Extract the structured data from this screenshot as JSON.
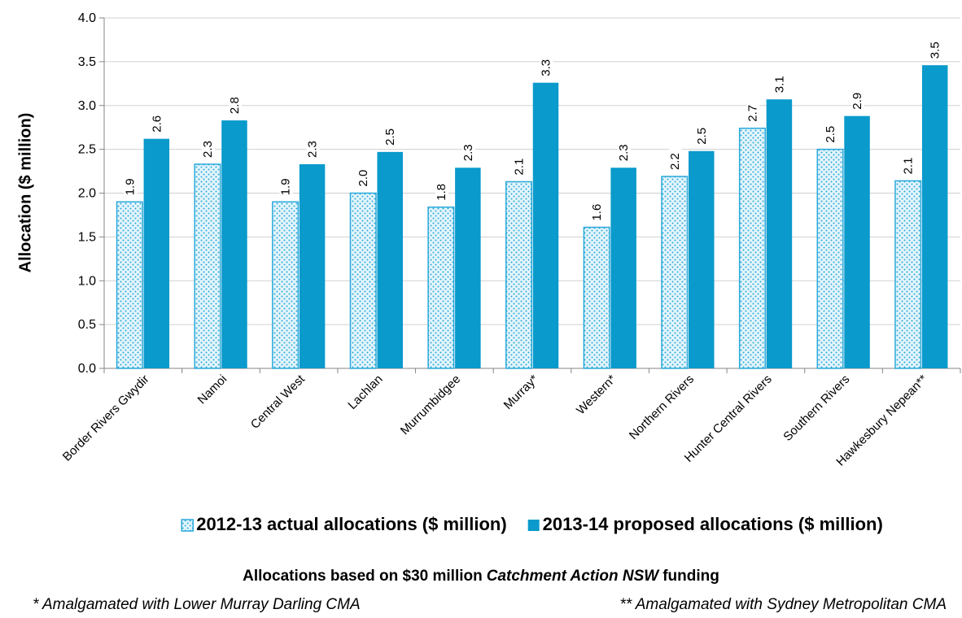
{
  "chart_data": {
    "type": "bar",
    "y_label": "Allocation ($ million)",
    "categories": [
      "Border Rivers Gwydir",
      "Namoi",
      "Central West",
      "Lachlan",
      "Murrumbidgee",
      "Murray*",
      "Western*",
      "Northern Rivers",
      "Hunter Central Rivers",
      "Southern Rivers",
      "Hawkesbury Nepean**"
    ],
    "series": [
      {
        "name": "2012-13 actual allocations ($ million)",
        "color": "#29a9da",
        "pattern": "dotted",
        "values": [
          1.9,
          2.33,
          1.9,
          2.0,
          1.84,
          2.13,
          1.61,
          2.19,
          2.74,
          2.5,
          2.14
        ],
        "value_labels": [
          "1.9",
          "2.3",
          "1.9",
          "2.0",
          "1.8",
          "2.1",
          "1.6",
          "2.2",
          "2.7",
          "2.5",
          "2.1"
        ]
      },
      {
        "name": "2013-14 proposed allocations ($ million)",
        "color": "#0a9acb",
        "values": [
          2.62,
          2.83,
          2.33,
          2.47,
          2.29,
          3.26,
          2.29,
          2.48,
          3.07,
          2.88,
          3.46
        ],
        "value_labels": [
          "2.6",
          "2.8",
          "2.3",
          "2.5",
          "2.3",
          "3.3",
          "2.3",
          "2.5",
          "3.1",
          "2.9",
          "3.5"
        ]
      }
    ],
    "ylim": [
      0,
      4
    ],
    "yticks": [
      {
        "value": 0,
        "label": "0.0"
      },
      0.5,
      {
        "value": 1,
        "label": "1.0"
      },
      1.5,
      {
        "value": 2,
        "label": "2.0"
      },
      2.5,
      {
        "value": 3,
        "label": "3.0"
      },
      3.5,
      {
        "value": 4,
        "label": "4.0"
      }
    ],
    "grid": true,
    "legend": "bottom",
    "caption": [
      "Allocations based on $30 million",
      "Catchment Action NSW",
      "funding"
    ],
    "footnotes": [
      "* Amalgamated with Lower Murray Darling CMA",
      "** Amalgamated with Sydney Metropolitan CMA"
    ]
  }
}
